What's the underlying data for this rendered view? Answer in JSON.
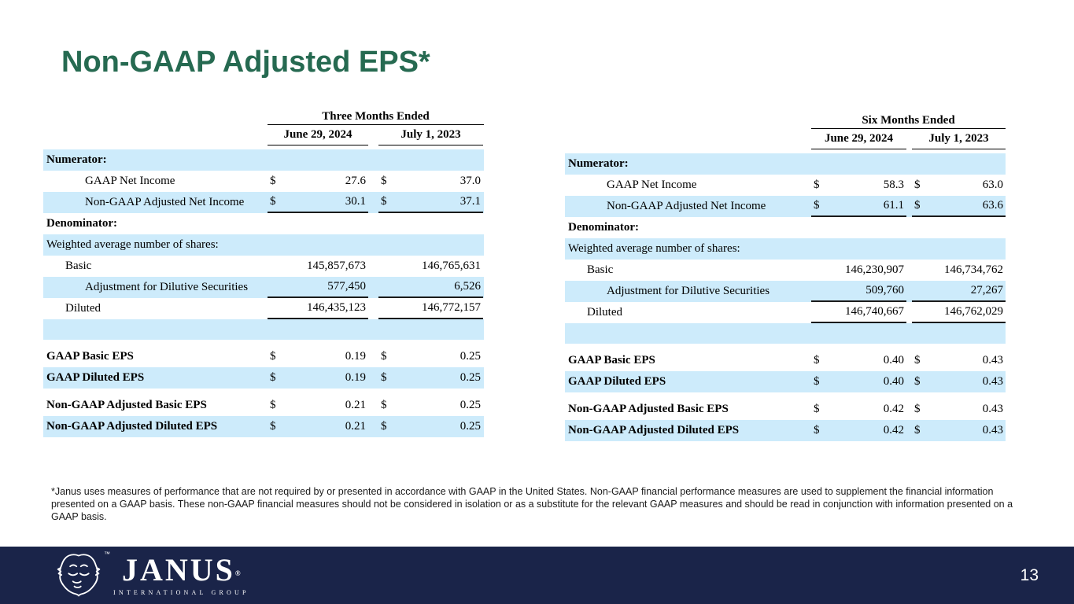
{
  "title": "Non-GAAP Adjusted EPS*",
  "page_number": "13",
  "currency_symbol": "$",
  "footnote": "*Janus uses measures of performance that are not required by or presented in accordance with GAAP in the United States. Non-GAAP financial performance measures are used to supplement the financial information presented on a GAAP basis. These non-GAAP financial measures should not be considered in isolation or as a substitute for the relevant GAAP measures and should be read in conjunction with information presented on a GAAP basis.",
  "logo": {
    "wordmark": "JANUS",
    "registered": "®",
    "tm": "™",
    "subtitle": "INTERNATIONAL GROUP"
  },
  "colors": {
    "title_green": "#266a51",
    "row_blue": "#cdebfb",
    "footer_navy": "#1a2449"
  },
  "tables": [
    {
      "period_header": "Three Months Ended",
      "columns": [
        "June 29, 2024",
        "July 1, 2023"
      ],
      "rows": [
        {
          "label": "Numerator:",
          "bold": true,
          "indent": 0,
          "bg": "blue",
          "dollar": false,
          "values": [
            "",
            ""
          ],
          "underline": false
        },
        {
          "label": "GAAP Net Income",
          "bold": false,
          "indent": 2,
          "bg": "white",
          "dollar": true,
          "values": [
            "27.6",
            "37.0"
          ],
          "underline": false
        },
        {
          "label": "Non-GAAP Adjusted Net Income",
          "bold": false,
          "indent": 2,
          "bg": "blue",
          "dollar": true,
          "values": [
            "30.1",
            "37.1"
          ],
          "underline": true
        },
        {
          "label": "Denominator:",
          "bold": true,
          "indent": 0,
          "bg": "white",
          "dollar": false,
          "values": [
            "",
            ""
          ],
          "underline": false
        },
        {
          "label": "Weighted average number of shares:",
          "bold": false,
          "indent": 0,
          "bg": "blue",
          "dollar": false,
          "values": [
            "",
            ""
          ],
          "underline": false
        },
        {
          "label": "Basic",
          "bold": false,
          "indent": 1,
          "bg": "white",
          "dollar": false,
          "values": [
            "145,857,673",
            "146,765,631"
          ],
          "underline": false
        },
        {
          "label": "Adjustment for Dilutive Securities",
          "bold": false,
          "indent": 2,
          "bg": "blue",
          "dollar": false,
          "values": [
            "577,450",
            "6,526"
          ],
          "underline": true
        },
        {
          "label": "Diluted",
          "bold": false,
          "indent": 1,
          "bg": "white",
          "dollar": false,
          "values": [
            "146,435,123",
            "146,772,157"
          ],
          "underline": true
        },
        {
          "label": "",
          "bold": false,
          "indent": 0,
          "bg": "blue",
          "dollar": false,
          "values": [
            "",
            ""
          ],
          "underline": false,
          "empty": true
        },
        {
          "label": "GAAP Basic EPS",
          "bold": true,
          "indent": 0,
          "bg": "white",
          "dollar": true,
          "values": [
            "0.19",
            "0.25"
          ],
          "underline": false,
          "spacer_before": true
        },
        {
          "label": "GAAP Diluted EPS",
          "bold": true,
          "indent": 0,
          "bg": "blue",
          "dollar": true,
          "values": [
            "0.19",
            "0.25"
          ],
          "underline": false
        },
        {
          "label": "Non-GAAP Adjusted Basic EPS",
          "bold": true,
          "indent": 0,
          "bg": "white",
          "dollar": true,
          "values": [
            "0.21",
            "0.25"
          ],
          "underline": false,
          "spacer_before": true
        },
        {
          "label": "Non-GAAP Adjusted Diluted EPS",
          "bold": true,
          "indent": 0,
          "bg": "blue",
          "dollar": true,
          "values": [
            "0.21",
            "0.25"
          ],
          "underline": false
        }
      ]
    },
    {
      "period_header": "Six Months Ended",
      "columns": [
        "June 29, 2024",
        "July 1, 2023"
      ],
      "rows": [
        {
          "label": "Numerator:",
          "bold": true,
          "indent": 0,
          "bg": "blue",
          "dollar": false,
          "values": [
            "",
            ""
          ],
          "underline": false
        },
        {
          "label": "GAAP Net Income",
          "bold": false,
          "indent": 2,
          "bg": "white",
          "dollar": true,
          "values": [
            "58.3",
            "63.0"
          ],
          "underline": false
        },
        {
          "label": "Non-GAAP Adjusted Net Income",
          "bold": false,
          "indent": 2,
          "bg": "blue",
          "dollar": true,
          "values": [
            "61.1",
            "63.6"
          ],
          "underline": true
        },
        {
          "label": "Denominator:",
          "bold": true,
          "indent": 0,
          "bg": "white",
          "dollar": false,
          "values": [
            "",
            ""
          ],
          "underline": false
        },
        {
          "label": "Weighted average number of shares:",
          "bold": false,
          "indent": 0,
          "bg": "blue",
          "dollar": false,
          "values": [
            "",
            ""
          ],
          "underline": false
        },
        {
          "label": "Basic",
          "bold": false,
          "indent": 1,
          "bg": "white",
          "dollar": false,
          "values": [
            "146,230,907",
            "146,734,762"
          ],
          "underline": false
        },
        {
          "label": "Adjustment for Dilutive Securities",
          "bold": false,
          "indent": 2,
          "bg": "blue",
          "dollar": false,
          "values": [
            "509,760",
            "27,267"
          ],
          "underline": true
        },
        {
          "label": "Diluted",
          "bold": false,
          "indent": 1,
          "bg": "white",
          "dollar": false,
          "values": [
            "146,740,667",
            "146,762,029"
          ],
          "underline": true
        },
        {
          "label": "",
          "bold": false,
          "indent": 0,
          "bg": "blue",
          "dollar": false,
          "values": [
            "",
            ""
          ],
          "underline": false,
          "empty": true
        },
        {
          "label": "GAAP Basic EPS",
          "bold": true,
          "indent": 0,
          "bg": "white",
          "dollar": true,
          "values": [
            "0.40",
            "0.43"
          ],
          "underline": false,
          "spacer_before": true
        },
        {
          "label": "GAAP Diluted EPS",
          "bold": true,
          "indent": 0,
          "bg": "blue",
          "dollar": true,
          "values": [
            "0.40",
            "0.43"
          ],
          "underline": false
        },
        {
          "label": "Non-GAAP Adjusted Basic EPS",
          "bold": true,
          "indent": 0,
          "bg": "white",
          "dollar": true,
          "values": [
            "0.42",
            "0.43"
          ],
          "underline": false,
          "spacer_before": true
        },
        {
          "label": "Non-GAAP Adjusted Diluted EPS",
          "bold": true,
          "indent": 0,
          "bg": "blue",
          "dollar": true,
          "values": [
            "0.42",
            "0.43"
          ],
          "underline": false
        }
      ]
    }
  ]
}
